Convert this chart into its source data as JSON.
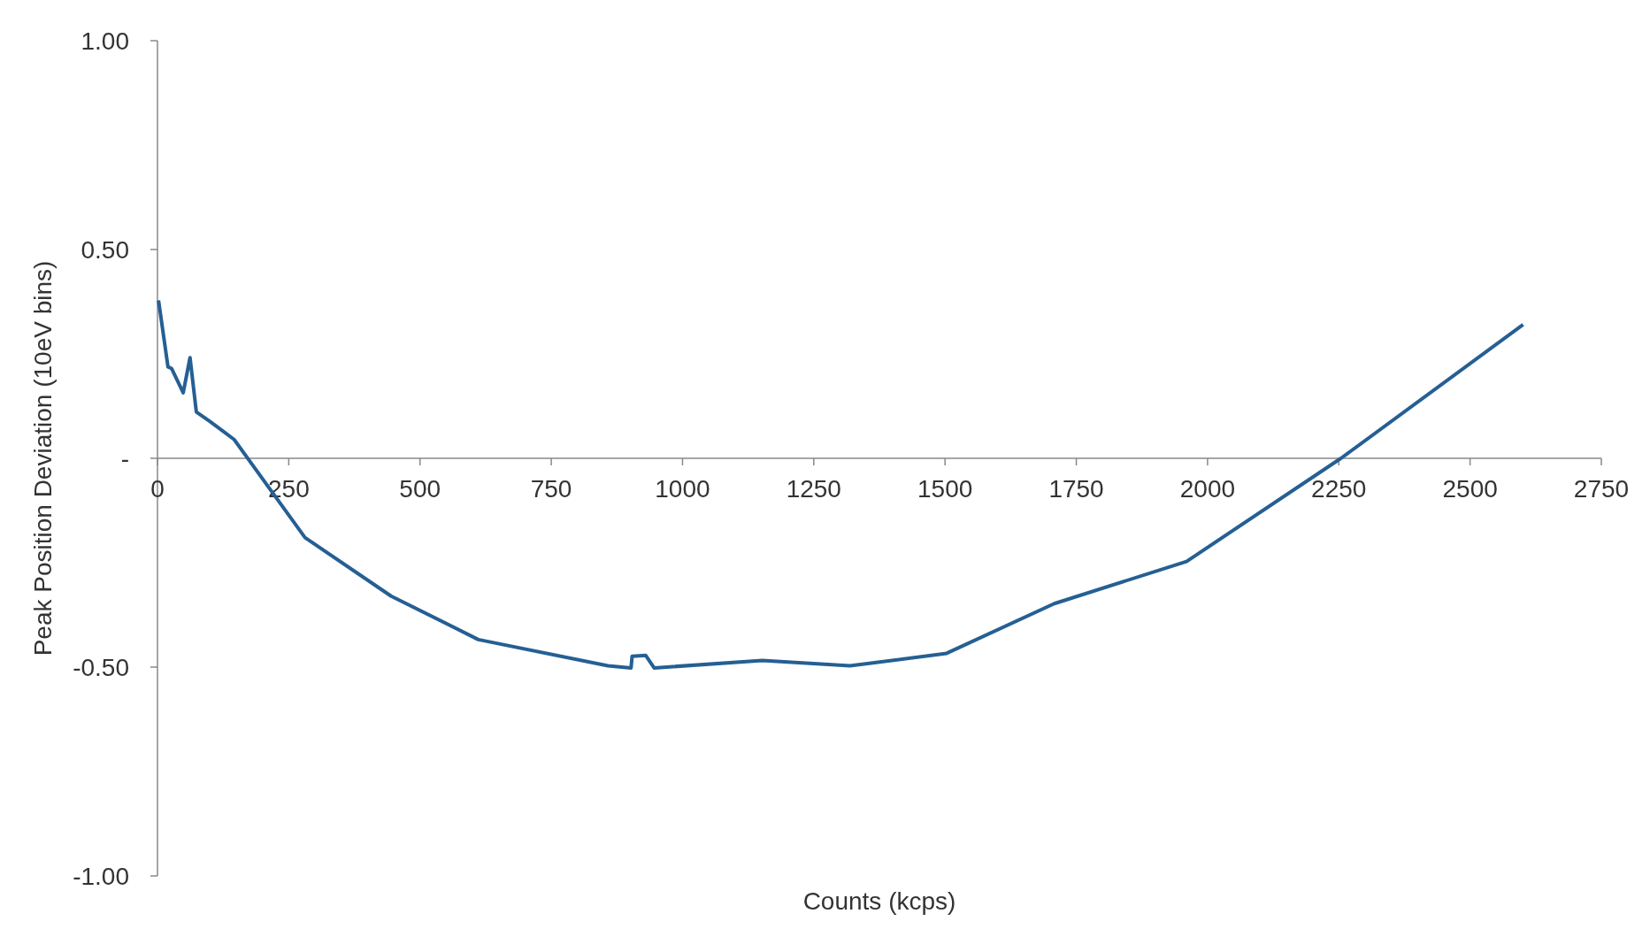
{
  "chart_data": {
    "type": "line",
    "xlabel": "Counts (kcps)",
    "ylabel": "Peak Position Deviation (10eV bins)",
    "xlim": [
      0,
      2750
    ],
    "xticks": [
      0,
      250,
      500,
      750,
      1000,
      1250,
      1500,
      1750,
      2000,
      2250,
      2500,
      2750
    ],
    "ylim": [
      -1,
      1
    ],
    "yticks": [
      {
        "value": 1,
        "label": "1.00"
      },
      {
        "value": 0.5,
        "label": "0.50"
      },
      {
        "value": 0,
        "label": "-"
      },
      {
        "value": -0.5,
        "label": "-0.50"
      },
      {
        "value": -1,
        "label": "-1.00"
      }
    ],
    "grid": false,
    "marker": "none",
    "line_style": "solid",
    "series": [
      {
        "color": "#255f94",
        "x": [
          2,
          20,
          27,
          49,
          62,
          74,
          100,
          146,
          281,
          445,
          611,
          858,
          902,
          904,
          930,
          946,
          1152,
          1319,
          1503,
          1708,
          1960,
          2254,
          2601
        ],
        "values": [
          0.378,
          0.219,
          0.215,
          0.157,
          0.241,
          0.111,
          0.088,
          0.045,
          -0.19,
          -0.33,
          -0.434,
          -0.497,
          -0.502,
          -0.474,
          -0.472,
          -0.502,
          -0.484,
          -0.497,
          -0.467,
          -0.348,
          -0.247,
          0,
          0.32
        ]
      }
    ]
  }
}
